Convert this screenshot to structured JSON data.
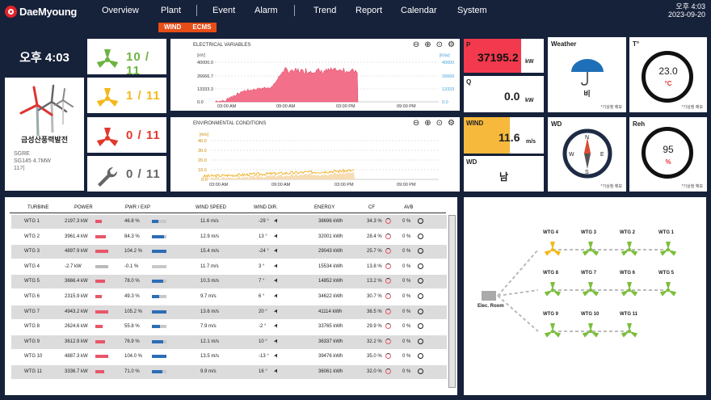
{
  "brand": {
    "name": "DaeMyoung"
  },
  "nav": {
    "items": [
      "Overview",
      "Plant",
      "Event",
      "Alarm",
      "Trend",
      "Report",
      "Calendar",
      "System"
    ]
  },
  "clock": {
    "time": "오후 4:03",
    "date": "2023-09-20"
  },
  "subtabs": [
    "WIND",
    "ECMS"
  ],
  "time_display": "오후 4:03",
  "plant": {
    "name": "금성산풍력발전",
    "model_line1": "SGRE",
    "model_line2": "SG145 4.7MW",
    "units": "11기"
  },
  "turbine_status": [
    {
      "icon": "turbine-green-icon",
      "color": "#6db33f",
      "value": "10 / 11"
    },
    {
      "icon": "turbine-yellow-icon",
      "color": "#f4b81a",
      "value": "1 / 11"
    },
    {
      "icon": "turbine-red-icon",
      "color": "#e2382c",
      "value": "0 / 11"
    },
    {
      "icon": "wrench-icon",
      "color": "#666666",
      "value": "0 / 11"
    }
  ],
  "elec_chart": {
    "title": "ELECTRICAL VARIABLES",
    "left_unit": "[kW]",
    "right_unit": "[kVar]",
    "left_ticks": [
      "40000.0",
      "26666.7",
      "13333.3",
      "0.0"
    ],
    "right_ticks": [
      "40000",
      "26666",
      "13333",
      "0.0"
    ],
    "x_ticks": [
      "03:00 AM",
      "09:00 AM",
      "03:00 PM",
      "09:00 PM"
    ]
  },
  "env_chart": {
    "title": "ENVIRONMENTAL CONDITIONS",
    "left_unit": "[m/s]",
    "left_ticks": [
      "40.0",
      "30.0",
      "20.0",
      "10.0",
      "0.0"
    ],
    "x_ticks": [
      "03:00 AM",
      "09:00 AM",
      "03:00 PM",
      "09:00 PM"
    ]
  },
  "stats": {
    "p": {
      "label": "P",
      "value": "37195.2",
      "unit": "kW"
    },
    "q": {
      "label": "Q",
      "value": "0.0",
      "unit": "kW"
    },
    "wind": {
      "label": "WIND",
      "value": "11.6",
      "unit": "m/s"
    },
    "wd": {
      "label": "WD",
      "value": "남"
    }
  },
  "weather": {
    "label": "Weather",
    "value": "비",
    "note": "*기상청 예보"
  },
  "temp": {
    "label": "T°",
    "value": "23.0",
    "unit": "°C",
    "note": "*기상청 예보"
  },
  "wdir": {
    "label": "WD",
    "note": "*기상청 예보",
    "n": "N",
    "e": "E",
    "s": "S",
    "w": "W"
  },
  "reh": {
    "label": "Reh",
    "value": "95",
    "unit": "%",
    "note": "*기상청 예보"
  },
  "table": {
    "headers": [
      "TURBINE",
      "POWER",
      "PWR / EXP",
      "WIND SPEED",
      "WIND DIR.",
      "ENERGY",
      "CF",
      "AVB"
    ],
    "rows": [
      {
        "name": "WTG 1",
        "power": "2197.3 kW",
        "pwr_exp": "46.8 %",
        "exp_frac": 0.47,
        "pow_frac": 0.47,
        "wind": "11.6 m/s",
        "dir": "-29 °",
        "energy": "38696 kWh",
        "cf": "34.3 %",
        "avb": "0 %"
      },
      {
        "name": "WTG 2",
        "power": "3961.4 kW",
        "pwr_exp": "84.3 %",
        "exp_frac": 0.84,
        "pow_frac": 0.84,
        "wind": "12.9 m/s",
        "dir": "13 °",
        "energy": "32001 kWh",
        "cf": "28.4 %",
        "avb": "0 %"
      },
      {
        "name": "WTG 3",
        "power": "4897.9 kW",
        "pwr_exp": "104.2 %",
        "exp_frac": 1.0,
        "pow_frac": 1.0,
        "wind": "15.4 m/s",
        "dir": "-24 °",
        "energy": "29043 kWh",
        "cf": "25.7 %",
        "avb": "0 %"
      },
      {
        "name": "WTG 4",
        "power": "-2.7 kW",
        "pwr_exp": "-0.1 %",
        "exp_frac": 0.0,
        "pow_frac": 1.0,
        "pow_grey": true,
        "wind": "11.7 m/s",
        "dir": "3 °",
        "energy": "15534 kWh",
        "cf": "13.8 %",
        "avb": "0 %"
      },
      {
        "name": "WTG 5",
        "power": "3666.4 kW",
        "pwr_exp": "78.0 %",
        "exp_frac": 0.78,
        "pow_frac": 0.78,
        "wind": "10.3 m/s",
        "dir": "7 °",
        "energy": "14852 kWh",
        "cf": "13.2 %",
        "avb": "0 %"
      },
      {
        "name": "WTG 6",
        "power": "2315.9 kW",
        "pwr_exp": "49.3 %",
        "exp_frac": 0.49,
        "pow_frac": 0.49,
        "wind": "9.7 m/s",
        "dir": "6 °",
        "energy": "34622 kWh",
        "cf": "30.7 %",
        "avb": "0 %"
      },
      {
        "name": "WTG 7",
        "power": "4943.2 kW",
        "pwr_exp": "105.2 %",
        "exp_frac": 1.0,
        "pow_frac": 1.0,
        "wind": "13.6 m/s",
        "dir": "20 °",
        "energy": "41114 kWh",
        "cf": "36.5 %",
        "avb": "0 %"
      },
      {
        "name": "WTG 8",
        "power": "2624.6 kW",
        "pwr_exp": "55.8 %",
        "exp_frac": 0.56,
        "pow_frac": 0.56,
        "wind": "7.9 m/s",
        "dir": "-2 °",
        "energy": "33765 kWh",
        "cf": "29.9 %",
        "avb": "0 %"
      },
      {
        "name": "WTG 9",
        "power": "3612.9 kW",
        "pwr_exp": "76.9 %",
        "exp_frac": 0.77,
        "pow_frac": 0.77,
        "wind": "12.1 m/s",
        "dir": "10 °",
        "energy": "36337 kWh",
        "cf": "32.2 %",
        "avb": "0 %"
      },
      {
        "name": "WTG 10",
        "power": "4887.3 kW",
        "pwr_exp": "104.0 %",
        "exp_frac": 1.0,
        "pow_frac": 1.0,
        "wind": "13.5 m/s",
        "dir": "-13 °",
        "energy": "39476 kWh",
        "cf": "35.0 %",
        "avb": "0 %"
      },
      {
        "name": "WTG 11",
        "power": "3336.7 kW",
        "pwr_exp": "71.0 %",
        "exp_frac": 0.71,
        "pow_frac": 0.71,
        "wind": "9.9 m/s",
        "dir": "16 °",
        "energy": "36061 kWh",
        "cf": "32.0 %",
        "avb": "0 %"
      }
    ]
  },
  "tree": {
    "room": "Elec. Room",
    "turbines": [
      {
        "name": "WTG 4",
        "color": "#f4b81a"
      },
      {
        "name": "WTG 3",
        "color": "#7bbf3a"
      },
      {
        "name": "WTG 2",
        "color": "#7bbf3a"
      },
      {
        "name": "WTG 1",
        "color": "#7bbf3a"
      },
      {
        "name": "WTG 8",
        "color": "#7bbf3a"
      },
      {
        "name": "WTG 7",
        "color": "#7bbf3a"
      },
      {
        "name": "WTG 6",
        "color": "#7bbf3a"
      },
      {
        "name": "WTG 5",
        "color": "#7bbf3a"
      },
      {
        "name": "WTG 9",
        "color": "#7bbf3a"
      },
      {
        "name": "WTG 10",
        "color": "#7bbf3a"
      },
      {
        "name": "WTG 11",
        "color": "#7bbf3a"
      }
    ]
  }
}
